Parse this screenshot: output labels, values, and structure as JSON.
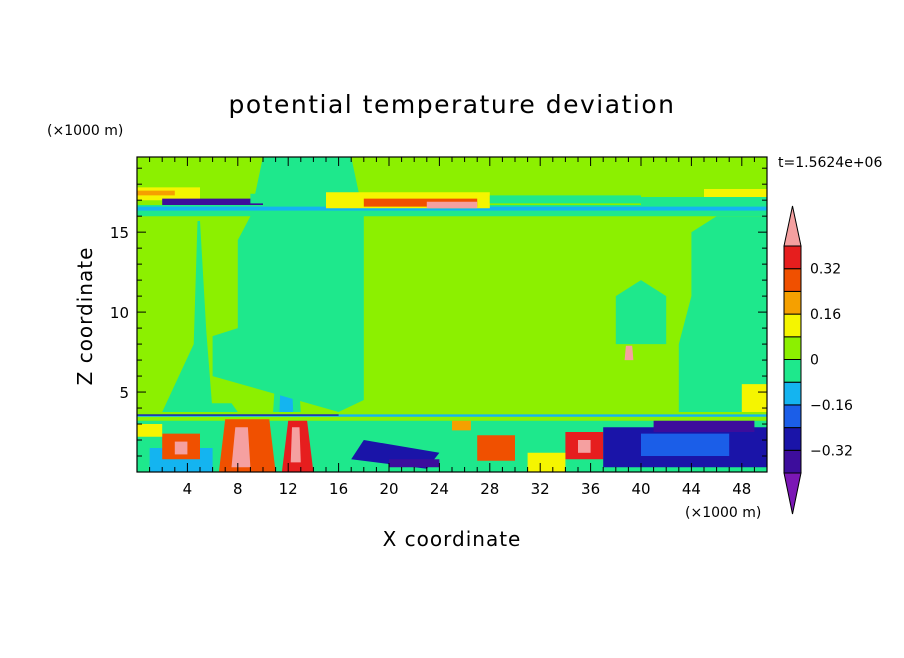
{
  "chart_data": {
    "type": "heatmap",
    "title": "potential temperature deviation",
    "xlabel": "X coordinate",
    "ylabel": "Z coordinate",
    "x_unit": "(×1000 m)",
    "y_unit": "(×1000 m)",
    "time_label": "t=1.5624e+06",
    "xlim": [
      0,
      50
    ],
    "ylim": [
      0,
      19.7
    ],
    "x_ticks": [
      4,
      8,
      12,
      16,
      20,
      24,
      28,
      32,
      36,
      40,
      44,
      48
    ],
    "y_ticks": [
      5,
      10,
      15
    ],
    "colorbar": {
      "levels": [
        -0.4,
        -0.32,
        -0.24,
        -0.16,
        -0.08,
        0,
        0.08,
        0.16,
        0.24,
        0.32,
        0.4
      ],
      "tick_labels": [
        "0.32",
        "0.16",
        "0",
        "−0.16",
        "−0.32"
      ],
      "tick_values": [
        0.32,
        0.16,
        0,
        -0.16,
        -0.32
      ],
      "colors": [
        "#7b17b5",
        "#3d0d9c",
        "#1a14a8",
        "#1b5ee8",
        "#14b4f0",
        "#1ee88c",
        "#8cf000",
        "#f5f500",
        "#f5a000",
        "#f05000",
        "#e61e1e",
        "#f5a0a0"
      ],
      "extend": "both"
    },
    "background_color": "#8cf000",
    "regions": [
      {
        "c": 5,
        "pts": [
          [
            0,
            0
          ],
          [
            50,
            0
          ],
          [
            50,
            3.6
          ],
          [
            0,
            3.6
          ]
        ]
      },
      {
        "c": 4,
        "pts": [
          [
            1,
            0
          ],
          [
            6,
            0
          ],
          [
            6,
            1.5
          ],
          [
            1,
            1.5
          ]
        ]
      },
      {
        "c": 6,
        "pts": [
          [
            0,
            3.2
          ],
          [
            50,
            3.2
          ],
          [
            50,
            3.75
          ],
          [
            0,
            3.75
          ]
        ]
      },
      {
        "c": 4,
        "pts": [
          [
            0,
            3.45
          ],
          [
            50,
            3.45
          ],
          [
            50,
            3.6
          ],
          [
            0,
            3.6
          ]
        ]
      },
      {
        "c": 2,
        "pts": [
          [
            0,
            3.52
          ],
          [
            16,
            3.52
          ],
          [
            16,
            3.6
          ],
          [
            0,
            3.6
          ]
        ]
      },
      {
        "c": 9,
        "pts": [
          [
            6.5,
            0
          ],
          [
            11,
            0
          ],
          [
            10.5,
            3.3
          ],
          [
            7,
            3.3
          ]
        ]
      },
      {
        "c": 11,
        "pts": [
          [
            7.5,
            0.3
          ],
          [
            9,
            0.3
          ],
          [
            8.8,
            2.8
          ],
          [
            7.8,
            2.8
          ]
        ]
      },
      {
        "c": 10,
        "pts": [
          [
            11.5,
            0
          ],
          [
            14,
            0
          ],
          [
            13.5,
            3.2
          ],
          [
            12,
            3.2
          ]
        ]
      },
      {
        "c": 11,
        "pts": [
          [
            12.2,
            0.6
          ],
          [
            13,
            0.6
          ],
          [
            12.9,
            2.8
          ],
          [
            12.3,
            2.8
          ]
        ]
      },
      {
        "c": 9,
        "pts": [
          [
            2,
            0.8
          ],
          [
            5,
            0.8
          ],
          [
            5,
            2.4
          ],
          [
            2,
            2.4
          ]
        ]
      },
      {
        "c": 11,
        "pts": [
          [
            3,
            1.1
          ],
          [
            4,
            1.1
          ],
          [
            4,
            1.9
          ],
          [
            3,
            1.9
          ]
        ]
      },
      {
        "c": 7,
        "pts": [
          [
            0,
            2.2
          ],
          [
            2,
            2.2
          ],
          [
            2,
            3
          ],
          [
            0,
            3
          ]
        ]
      },
      {
        "c": 2,
        "pts": [
          [
            17,
            0.8
          ],
          [
            23,
            0.2
          ],
          [
            24,
            1.2
          ],
          [
            18,
            2
          ]
        ]
      },
      {
        "c": 1,
        "pts": [
          [
            20,
            0.3
          ],
          [
            24,
            0.3
          ],
          [
            24,
            0.8
          ],
          [
            20,
            0.8
          ]
        ]
      },
      {
        "c": 9,
        "pts": [
          [
            27,
            0.7
          ],
          [
            30,
            0.7
          ],
          [
            30,
            2.3
          ],
          [
            27,
            2.3
          ]
        ]
      },
      {
        "c": 10,
        "pts": [
          [
            34,
            0.8
          ],
          [
            37,
            0.8
          ],
          [
            37,
            2.5
          ],
          [
            34,
            2.5
          ]
        ]
      },
      {
        "c": 11,
        "pts": [
          [
            35,
            1.2
          ],
          [
            36,
            1.2
          ],
          [
            36,
            2
          ],
          [
            35,
            2
          ]
        ]
      },
      {
        "c": 2,
        "pts": [
          [
            37,
            0.3
          ],
          [
            50,
            0.3
          ],
          [
            50,
            2.8
          ],
          [
            37,
            2.8
          ]
        ]
      },
      {
        "c": 3,
        "pts": [
          [
            40,
            1
          ],
          [
            47,
            1
          ],
          [
            47,
            2.4
          ],
          [
            40,
            2.4
          ]
        ]
      },
      {
        "c": 1,
        "pts": [
          [
            41,
            2.5
          ],
          [
            49,
            2.5
          ],
          [
            49,
            3.2
          ],
          [
            41,
            3.2
          ]
        ]
      },
      {
        "c": 7,
        "pts": [
          [
            31,
            0
          ],
          [
            34,
            0
          ],
          [
            34,
            1.2
          ],
          [
            31,
            1.2
          ]
        ]
      },
      {
        "c": 8,
        "pts": [
          [
            25,
            2.6
          ],
          [
            26.5,
            2.6
          ],
          [
            26.5,
            3.2
          ],
          [
            25,
            3.2
          ]
        ]
      },
      {
        "c": 6,
        "pts": [
          [
            9,
            3.75
          ],
          [
            14,
            3.75
          ],
          [
            13.5,
            8.3
          ],
          [
            9.5,
            8.3
          ]
        ]
      },
      {
        "c": 5,
        "pts": [
          [
            10.8,
            3.75
          ],
          [
            13,
            3.75
          ],
          [
            12.6,
            8.6
          ],
          [
            11.2,
            8.6
          ]
        ]
      },
      {
        "c": 4,
        "pts": [
          [
            11.3,
            3.75
          ],
          [
            12.4,
            3.75
          ],
          [
            12.3,
            5.5
          ],
          [
            11.4,
            5.5
          ]
        ]
      },
      {
        "c": 5,
        "pts": [
          [
            5,
            3.75
          ],
          [
            8,
            3.75
          ],
          [
            7.5,
            4.3
          ],
          [
            5.5,
            4.3
          ]
        ]
      },
      {
        "c": 5,
        "pts": [
          [
            2,
            3.75
          ],
          [
            6,
            3.75
          ],
          [
            5.5,
            8.8
          ],
          [
            5,
            15.7
          ],
          [
            0,
            15.7
          ],
          [
            0,
            6
          ]
        ]
      },
      {
        "c": 6,
        "pts": [
          [
            0,
            3.75
          ],
          [
            2,
            3.75
          ],
          [
            4.5,
            8
          ],
          [
            4.8,
            15.7
          ],
          [
            0,
            15.7
          ]
        ]
      },
      {
        "c": 5,
        "pts": [
          [
            16,
            3.75
          ],
          [
            18,
            4.5
          ],
          [
            18,
            16
          ],
          [
            17,
            19.7
          ],
          [
            10,
            19.7
          ],
          [
            9,
            16
          ],
          [
            8,
            14.5
          ],
          [
            8,
            9
          ],
          [
            6,
            8.5
          ],
          [
            6,
            6
          ]
        ]
      },
      {
        "c": 6,
        "pts": [
          [
            27,
            5
          ],
          [
            36,
            5
          ],
          [
            36,
            16
          ],
          [
            37,
            19.7
          ],
          [
            25,
            19.7
          ],
          [
            26,
            16
          ]
        ]
      },
      {
        "c": 5,
        "pts": [
          [
            38,
            8
          ],
          [
            42,
            8
          ],
          [
            42,
            11
          ],
          [
            40,
            12
          ],
          [
            38,
            11
          ]
        ]
      },
      {
        "c": 5,
        "pts": [
          [
            43,
            3.75
          ],
          [
            50,
            3.75
          ],
          [
            50,
            16
          ],
          [
            46,
            16
          ],
          [
            44,
            15
          ],
          [
            44,
            11
          ],
          [
            43,
            8
          ]
        ]
      },
      {
        "c": 6,
        "pts": [
          [
            0,
            16
          ],
          [
            3,
            16
          ],
          [
            3,
            19.7
          ],
          [
            0,
            19.7
          ]
        ]
      },
      {
        "c": 5,
        "pts": [
          [
            0,
            16
          ],
          [
            50,
            16
          ],
          [
            50,
            16.7
          ],
          [
            0,
            16.7
          ]
        ]
      },
      {
        "c": 4,
        "pts": [
          [
            0,
            16.35
          ],
          [
            50,
            16.35
          ],
          [
            50,
            16.6
          ],
          [
            0,
            16.6
          ]
        ]
      },
      {
        "c": 7,
        "pts": [
          [
            0,
            17
          ],
          [
            5,
            17
          ],
          [
            5,
            17.8
          ],
          [
            0,
            17.8
          ]
        ]
      },
      {
        "c": 8,
        "pts": [
          [
            0,
            17.3
          ],
          [
            3,
            17.3
          ],
          [
            3,
            17.6
          ],
          [
            0,
            17.6
          ]
        ]
      },
      {
        "c": 1,
        "pts": [
          [
            2,
            16.7
          ],
          [
            10,
            16.7
          ],
          [
            10,
            17.1
          ],
          [
            2,
            17.1
          ]
        ]
      },
      {
        "c": 7,
        "pts": [
          [
            15,
            16.5
          ],
          [
            28,
            16.5
          ],
          [
            28,
            17.5
          ],
          [
            15,
            17.5
          ]
        ]
      },
      {
        "c": 9,
        "pts": [
          [
            18,
            16.6
          ],
          [
            27,
            16.6
          ],
          [
            27,
            17.1
          ],
          [
            18,
            17.1
          ]
        ]
      },
      {
        "c": 11,
        "pts": [
          [
            23,
            16.5
          ],
          [
            27,
            16.5
          ],
          [
            27,
            16.9
          ],
          [
            23,
            16.9
          ]
        ]
      },
      {
        "c": 7,
        "pts": [
          [
            45,
            17
          ],
          [
            50,
            17
          ],
          [
            50,
            17.7
          ],
          [
            45,
            17.7
          ]
        ]
      },
      {
        "c": 5,
        "pts": [
          [
            9,
            16.8
          ],
          [
            14,
            16.8
          ],
          [
            14,
            17.4
          ],
          [
            9,
            17.4
          ]
        ]
      },
      {
        "c": 5,
        "pts": [
          [
            28,
            16.8
          ],
          [
            40,
            16.8
          ],
          [
            40,
            17.3
          ],
          [
            28,
            17.3
          ]
        ]
      },
      {
        "c": 5,
        "pts": [
          [
            40,
            16.7
          ],
          [
            50,
            16.7
          ],
          [
            50,
            17.2
          ],
          [
            40,
            17.2
          ]
        ]
      },
      {
        "c": 11,
        "pts": [
          [
            38.7,
            7
          ],
          [
            39.4,
            7
          ],
          [
            39.3,
            7.9
          ],
          [
            38.8,
            7.9
          ]
        ]
      },
      {
        "c": 7,
        "pts": [
          [
            48,
            3.75
          ],
          [
            50,
            3.75
          ],
          [
            50,
            5.5
          ],
          [
            48,
            5.5
          ]
        ]
      }
    ]
  }
}
